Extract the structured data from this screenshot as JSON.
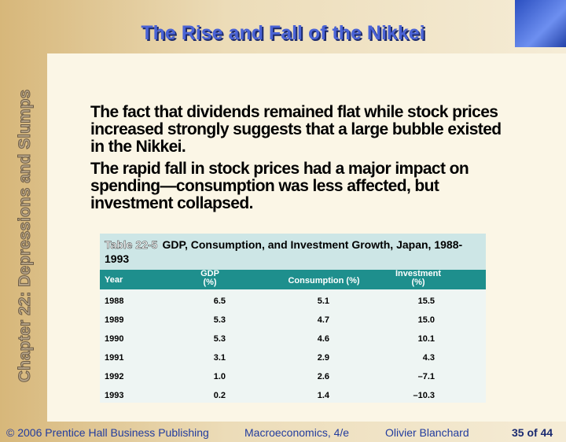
{
  "header": {
    "title": "The Rise and Fall of the Nikkei"
  },
  "sidebar": {
    "text": "Chapter 22: Depressions and Slumps"
  },
  "body": {
    "paragraphs": [
      "The fact that dividends remained flat while stock prices increased strongly suggests that a large bubble existed in the Nikkei.",
      "The rapid fall in stock prices had a major impact on spending—consumption was less affected, but investment collapsed."
    ]
  },
  "table": {
    "label": "Table 22-5",
    "title": "GDP, Consumption, and Investment Growth, Japan, 1988-1993",
    "columns": [
      "Year",
      "GDP (%)",
      "Consumption (%)",
      "Investment (%)"
    ],
    "rows": [
      [
        "1988",
        "6.5",
        "5.1",
        "15.5"
      ],
      [
        "1989",
        "5.3",
        "4.7",
        "15.0"
      ],
      [
        "1990",
        "5.3",
        "4.6",
        "10.1"
      ],
      [
        "1991",
        "3.1",
        "2.9",
        "4.3"
      ],
      [
        "1992",
        "1.0",
        "2.6",
        "–7.1"
      ],
      [
        "1993",
        "0.2",
        "1.4",
        "–10.3"
      ]
    ]
  },
  "footer": {
    "copyright": "© 2006 Prentice Hall Business Publishing",
    "book": "Macroeconomics, 4/e",
    "author": "Olivier Blanchard",
    "page": "35 of 44"
  }
}
